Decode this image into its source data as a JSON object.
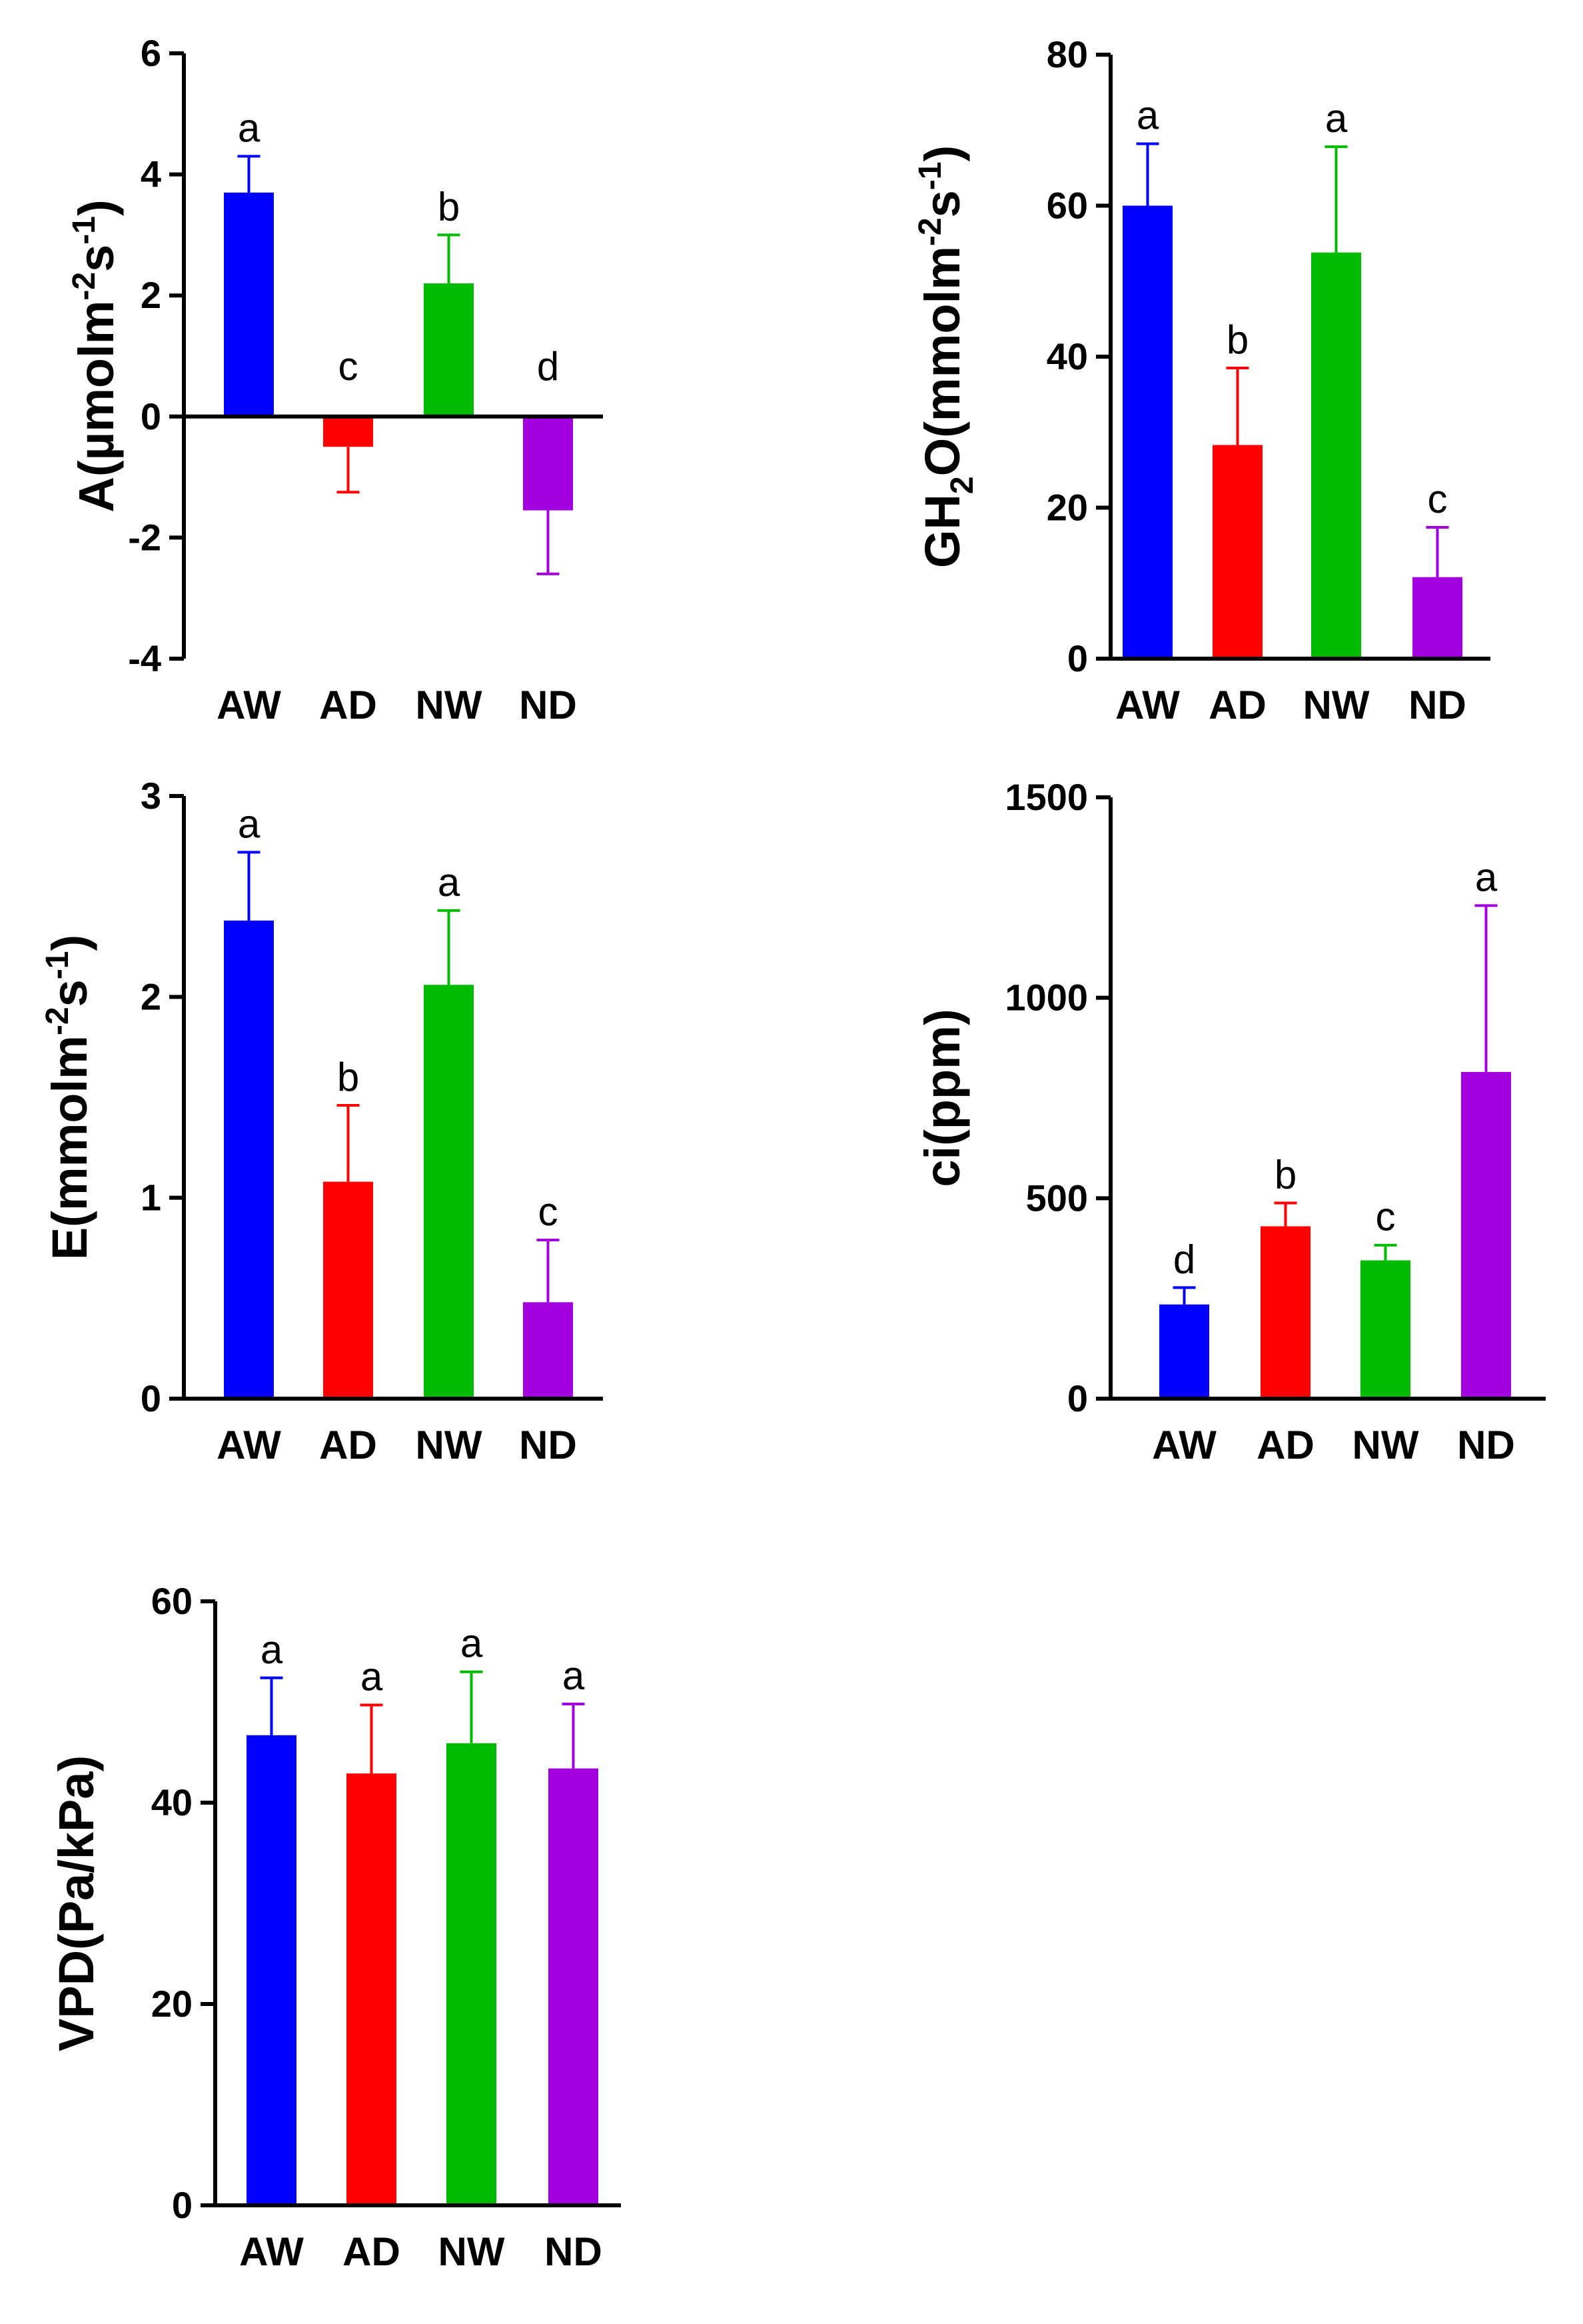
{
  "chart_data": [
    {
      "type": "bar",
      "ylabel_parts": [
        "A(µmolm",
        "-2",
        "s",
        "-1",
        ")"
      ],
      "categories": [
        "AW",
        "AD",
        "NW",
        "ND"
      ],
      "values": [
        3.7,
        -0.5,
        2.2,
        -1.55
      ],
      "errors": [
        0.6,
        0.75,
        0.8,
        1.05
      ],
      "significance": [
        "a",
        "c",
        "b",
        "d"
      ],
      "ylim": [
        -4,
        6
      ],
      "yticks": [
        -4,
        -2,
        0,
        2,
        4,
        6
      ],
      "ytick_labels": [
        "-4",
        "-2",
        "0",
        "2",
        "4",
        "6"
      ],
      "colors": [
        "#0000ff",
        "#ff0000",
        "#00bb00",
        "#a300e0"
      ]
    },
    {
      "type": "bar",
      "ylabel_parts": [
        "GH",
        "2",
        "O(mmolm",
        "-2",
        "s",
        "-1",
        ")"
      ],
      "categories": [
        "AW",
        "AD",
        "NW",
        "ND"
      ],
      "values": [
        60,
        28.3,
        53.8,
        10.8
      ],
      "errors": [
        8.2,
        10.2,
        14,
        6.6
      ],
      "significance": [
        "a",
        "b",
        "a",
        "c"
      ],
      "ylim": [
        0,
        80
      ],
      "yticks": [
        0,
        20,
        40,
        60,
        80
      ],
      "ytick_labels": [
        "0",
        "20",
        "40",
        "60",
        "80"
      ],
      "colors": [
        "#0000ff",
        "#ff0000",
        "#00bb00",
        "#a300e0"
      ]
    },
    {
      "type": "bar",
      "ylabel_parts": [
        "E(mmolm",
        "-2",
        "s",
        "-1",
        ")"
      ],
      "categories": [
        "AW",
        "AD",
        "NW",
        "ND"
      ],
      "values": [
        2.38,
        1.08,
        2.06,
        0.48
      ],
      "errors": [
        0.34,
        0.38,
        0.37,
        0.31
      ],
      "significance": [
        "a",
        "b",
        "a",
        "c"
      ],
      "ylim": [
        0,
        3
      ],
      "yticks": [
        0,
        1,
        2,
        3
      ],
      "ytick_labels": [
        "0",
        "1",
        "2",
        "3"
      ],
      "colors": [
        "#0000ff",
        "#ff0000",
        "#00bb00",
        "#a300e0"
      ]
    },
    {
      "type": "bar",
      "ylabel_parts": [
        "ci(ppm)"
      ],
      "categories": [
        "AW",
        "AD",
        "NW",
        "ND"
      ],
      "values": [
        235,
        430,
        345,
        815
      ],
      "errors": [
        42,
        58,
        38,
        415
      ],
      "significance": [
        "d",
        "b",
        "c",
        "a"
      ],
      "ylim": [
        0,
        1500
      ],
      "yticks": [
        0,
        500,
        1000,
        1500
      ],
      "ytick_labels": [
        "0",
        "500",
        "1000",
        "1500"
      ],
      "colors": [
        "#0000ff",
        "#ff0000",
        "#00bb00",
        "#a300e0"
      ]
    },
    {
      "type": "bar",
      "ylabel_parts": [
        "VPD(Pa/kPa)"
      ],
      "categories": [
        "AW",
        "AD",
        "NW",
        "ND"
      ],
      "values": [
        46.7,
        42.9,
        45.9,
        43.4
      ],
      "errors": [
        5.7,
        6.8,
        7.1,
        6.4
      ],
      "significance": [
        "a",
        "a",
        "a",
        "a"
      ],
      "ylim": [
        0,
        60
      ],
      "yticks": [
        0,
        20,
        40,
        60
      ],
      "ytick_labels": [
        "0",
        "20",
        "40",
        "60"
      ],
      "colors": [
        "#0000ff",
        "#ff0000",
        "#00bb00",
        "#a300e0"
      ]
    }
  ]
}
